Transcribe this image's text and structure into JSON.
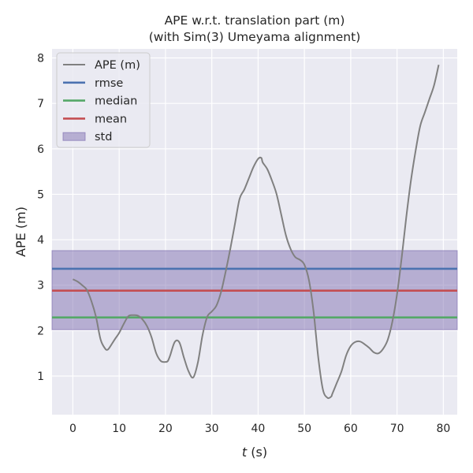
{
  "chart_data": {
    "type": "line",
    "title": "APE w.r.t. translation part (m)",
    "subtitle": "(with Sim(3) Umeyama alignment)",
    "xlabel_var": "t",
    "xlabel_unit": " (s)",
    "ylabel": "APE (m)",
    "xlim": [
      -4.5,
      83
    ],
    "ylim": [
      0.15,
      8.2
    ],
    "xticks": [
      0,
      10,
      20,
      30,
      40,
      50,
      60,
      70,
      80
    ],
    "yticks": [
      1,
      2,
      3,
      4,
      5,
      6,
      7,
      8
    ],
    "grid": true,
    "legend_position": "top-left",
    "colors": {
      "background": "#eaeaf2",
      "ape": "#808080",
      "rmse": "#4c72b0",
      "median": "#55a868",
      "mean": "#c44e52",
      "std_fill": "#8172b2"
    },
    "series": [
      {
        "name": "APE (m)",
        "x": [
          0,
          1,
          2,
          3,
          4,
          5,
          6,
          7,
          7.5,
          8,
          9,
          10,
          11,
          12,
          13,
          14,
          15,
          16,
          17,
          18,
          19,
          20,
          20.5,
          21,
          22,
          23,
          24,
          25,
          26,
          27,
          28,
          29,
          30,
          31,
          32,
          33,
          34,
          35,
          36,
          37,
          38,
          39,
          40,
          40.7,
          41,
          42,
          43,
          44,
          45,
          46,
          47,
          48,
          49,
          50,
          51,
          52,
          53,
          54,
          55,
          55.8,
          56,
          57,
          58,
          59,
          60,
          61,
          62,
          63,
          64,
          65,
          66,
          67,
          68,
          69,
          70,
          71,
          72,
          73,
          74,
          75,
          76,
          77,
          78,
          79
        ],
        "values": [
          3.13,
          3.08,
          3.0,
          2.9,
          2.65,
          2.3,
          1.8,
          1.6,
          1.58,
          1.64,
          1.8,
          1.95,
          2.15,
          2.32,
          2.34,
          2.33,
          2.25,
          2.1,
          1.85,
          1.5,
          1.33,
          1.31,
          1.33,
          1.45,
          1.75,
          1.74,
          1.4,
          1.1,
          0.97,
          1.3,
          1.9,
          2.3,
          2.42,
          2.55,
          2.85,
          3.3,
          3.8,
          4.35,
          4.9,
          5.1,
          5.35,
          5.6,
          5.78,
          5.8,
          5.7,
          5.55,
          5.3,
          5.0,
          4.55,
          4.1,
          3.8,
          3.62,
          3.56,
          3.45,
          3.1,
          2.4,
          1.4,
          0.7,
          0.52,
          0.55,
          0.6,
          0.85,
          1.1,
          1.45,
          1.66,
          1.75,
          1.76,
          1.7,
          1.62,
          1.52,
          1.5,
          1.6,
          1.8,
          2.2,
          2.8,
          3.6,
          4.5,
          5.3,
          5.95,
          6.5,
          6.8,
          7.1,
          7.4,
          7.85
        ]
      },
      {
        "name": "rmse",
        "value": 3.36
      },
      {
        "name": "median",
        "value": 2.29
      },
      {
        "name": "mean",
        "value": 2.88
      },
      {
        "name": "std",
        "range": [
          2.02,
          3.76
        ]
      }
    ]
  }
}
